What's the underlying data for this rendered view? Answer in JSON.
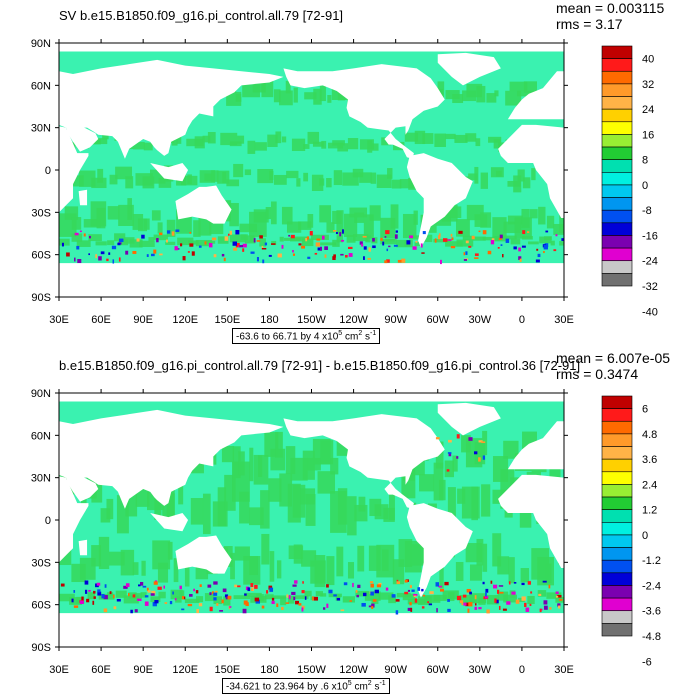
{
  "colors": {
    "ocean": "#3af2b0",
    "ocean_light": "#22e0c0",
    "green": "#36d85a",
    "land": "#ffffff",
    "colorbar": [
      "#c00000",
      "#ff1a1a",
      "#ff6a00",
      "#ff9a2a",
      "#ffb347",
      "#ffd000",
      "#ffff00",
      "#99ee33",
      "#22cc33",
      "#00e0b0",
      "#00f0e0",
      "#00c8f0",
      "#0096f0",
      "#0050f0",
      "#0000d8",
      "#7a00b0",
      "#e000d0",
      "#c8c8c8",
      "#707070"
    ]
  },
  "panels": [
    {
      "title": "SV b.e15.B1850.f09_g16.pi_control.all.79 [72-91]",
      "mean": "mean = 0.003115",
      "rms": "rms = 3.17",
      "info_prefix": "-63.6 to 66.71 by 4 x10",
      "info_exp1": "5",
      "info_mid": " cm",
      "info_exp2": "2",
      "info_mid2": " s",
      "info_exp3": "-1",
      "chart_data": {
        "type": "heatmap",
        "lat_labels": [
          "90N",
          "60N",
          "30N",
          "0",
          "30S",
          "60S",
          "90S"
        ],
        "lon_labels": [
          "30E",
          "60E",
          "90E",
          "120E",
          "150E",
          "180",
          "150W",
          "120W",
          "90W",
          "60W",
          "30W",
          "0",
          "30E"
        ],
        "levels": [
          "40",
          "32",
          "24",
          "16",
          "8",
          "0",
          "-8",
          "-16",
          "-24",
          "-32",
          "-40"
        ],
        "min": -63.6,
        "max": 66.71,
        "interval": 4
      }
    },
    {
      "title": "b.e15.B1850.f09_g16.pi_control.all.79 [72-91] - b.e15.B1850.f09_g16.pi_control.36 [72-91]",
      "mean": "mean = 6.007e-05",
      "rms": "rms = 0.3474",
      "info_prefix": "-34.621 to 23.964 by .6 x10",
      "info_exp1": "5",
      "info_mid": " cm",
      "info_exp2": "2",
      "info_mid2": " s",
      "info_exp3": "-1",
      "chart_data": {
        "type": "heatmap",
        "lat_labels": [
          "90N",
          "60N",
          "30N",
          "0",
          "30S",
          "60S",
          "90S"
        ],
        "lon_labels": [
          "30E",
          "60E",
          "90E",
          "120E",
          "150E",
          "180",
          "150W",
          "120W",
          "90W",
          "60W",
          "30W",
          "0",
          "30E"
        ],
        "levels": [
          "6",
          "4.8",
          "3.6",
          "2.4",
          "1.2",
          "0",
          "-1.2",
          "-2.4",
          "-3.6",
          "-4.8",
          "-6"
        ],
        "min": -34.621,
        "max": 23.964,
        "interval": 0.6
      }
    }
  ]
}
